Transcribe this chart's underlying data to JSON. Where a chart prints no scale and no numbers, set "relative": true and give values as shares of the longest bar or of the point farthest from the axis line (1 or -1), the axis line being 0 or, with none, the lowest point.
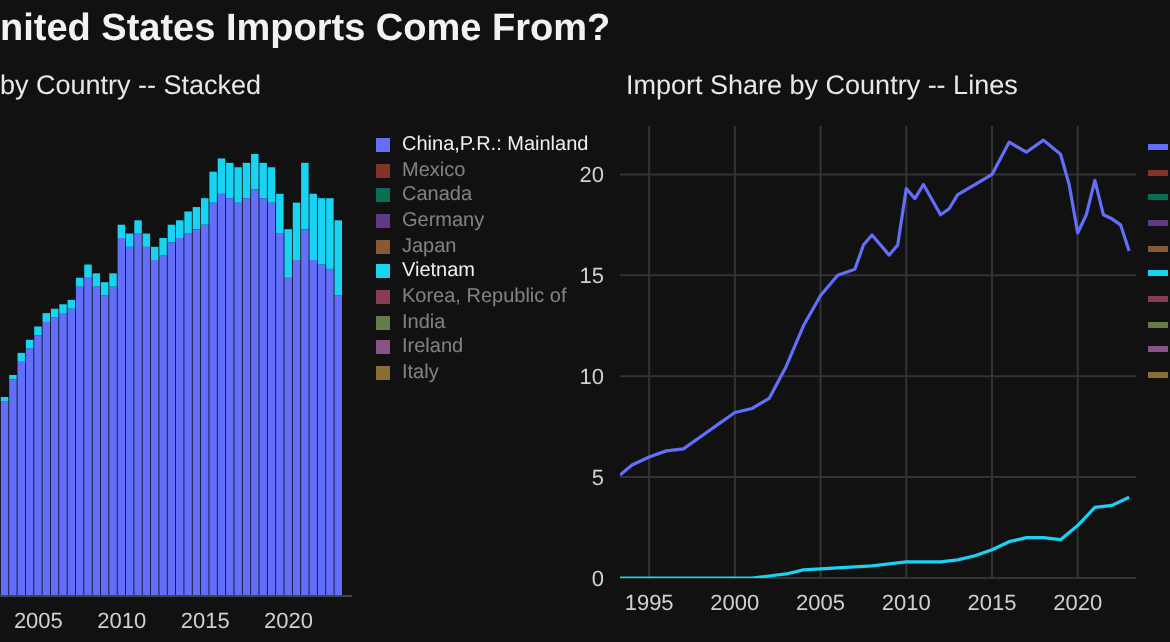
{
  "chart_data": [
    {
      "type": "bar",
      "title": "nited States Imports Come From?",
      "subtitle": "by Country -- Stacked",
      "stacked": true,
      "relative": true,
      "legend": "right",
      "tick_labels": "x",
      "xlim": [
        2002.7,
        2023.8
      ],
      "xticks": [
        2005,
        2010,
        2015,
        2020
      ],
      "x": [
        2003,
        2003.5,
        2004,
        2004.5,
        2005,
        2005.5,
        2006,
        2006.5,
        2007,
        2007.5,
        2008,
        2008.5,
        2009,
        2009.5,
        2010,
        2010.5,
        2011,
        2011.5,
        2012,
        2012.5,
        2013,
        2013.5,
        2014,
        2014.5,
        2015,
        2015.5,
        2016,
        2016.5,
        2017,
        2017.5,
        2018,
        2018.5,
        2019,
        2019.5,
        2020,
        2020.5,
        2021,
        2021.5,
        2022,
        2022.5,
        2023
      ],
      "series": [
        {
          "name": "China,P.R.: Mainland",
          "color": "#636efa",
          "values": [
            0.44,
            0.49,
            0.53,
            0.56,
            0.59,
            0.62,
            0.63,
            0.64,
            0.65,
            0.7,
            0.72,
            0.7,
            0.68,
            0.7,
            0.81,
            0.79,
            0.82,
            0.79,
            0.76,
            0.77,
            0.8,
            0.81,
            0.82,
            0.83,
            0.84,
            0.89,
            0.91,
            0.9,
            0.89,
            0.9,
            0.92,
            0.9,
            0.89,
            0.82,
            0.72,
            0.76,
            0.83,
            0.76,
            0.75,
            0.74,
            0.68
          ]
        },
        {
          "name": "Mexico",
          "color": "#ef553b",
          "values": [
            null,
            null,
            null,
            null,
            null,
            null,
            null,
            null,
            null,
            null,
            null,
            null,
            null,
            null,
            null,
            null,
            null,
            null,
            null,
            null,
            null,
            null,
            null,
            null,
            null,
            null,
            null,
            null,
            null,
            null,
            null,
            null,
            null,
            null,
            null,
            null,
            null,
            null,
            null,
            null,
            null
          ]
        },
        {
          "name": "Canada",
          "color": "#00cc96",
          "values": [
            null,
            null,
            null,
            null,
            null,
            null,
            null,
            null,
            null,
            null,
            null,
            null,
            null,
            null,
            null,
            null,
            null,
            null,
            null,
            null,
            null,
            null,
            null,
            null,
            null,
            null,
            null,
            null,
            null,
            null,
            null,
            null,
            null,
            null,
            null,
            null,
            null,
            null,
            null,
            null,
            null
          ]
        },
        {
          "name": "Germany",
          "color": "#ab63fa",
          "values": [
            null,
            null,
            null,
            null,
            null,
            null,
            null,
            null,
            null,
            null,
            null,
            null,
            null,
            null,
            null,
            null,
            null,
            null,
            null,
            null,
            null,
            null,
            null,
            null,
            null,
            null,
            null,
            null,
            null,
            null,
            null,
            null,
            null,
            null,
            null,
            null,
            null,
            null,
            null,
            null,
            null
          ]
        },
        {
          "name": "Japan",
          "color": "#ffa15a",
          "values": [
            null,
            null,
            null,
            null,
            null,
            null,
            null,
            null,
            null,
            null,
            null,
            null,
            null,
            null,
            null,
            null,
            null,
            null,
            null,
            null,
            null,
            null,
            null,
            null,
            null,
            null,
            null,
            null,
            null,
            null,
            null,
            null,
            null,
            null,
            null,
            null,
            null,
            null,
            null,
            null,
            null
          ]
        },
        {
          "name": "Vietnam",
          "color": "#19d3f3",
          "values": [
            0.01,
            0.01,
            0.02,
            0.02,
            0.02,
            0.02,
            0.02,
            0.02,
            0.02,
            0.02,
            0.03,
            0.03,
            0.03,
            0.03,
            0.03,
            0.03,
            0.03,
            0.03,
            0.03,
            0.04,
            0.04,
            0.04,
            0.05,
            0.05,
            0.06,
            0.07,
            0.08,
            0.08,
            0.08,
            0.08,
            0.08,
            0.08,
            0.08,
            0.09,
            0.11,
            0.13,
            0.15,
            0.15,
            0.15,
            0.16,
            0.17
          ]
        },
        {
          "name": "Korea, Republic of",
          "color": "#ff6692",
          "values": [
            null,
            null,
            null,
            null,
            null,
            null,
            null,
            null,
            null,
            null,
            null,
            null,
            null,
            null,
            null,
            null,
            null,
            null,
            null,
            null,
            null,
            null,
            null,
            null,
            null,
            null,
            null,
            null,
            null,
            null,
            null,
            null,
            null,
            null,
            null,
            null,
            null,
            null,
            null,
            null,
            null
          ]
        },
        {
          "name": "India",
          "color": "#b6e880",
          "values": [
            null,
            null,
            null,
            null,
            null,
            null,
            null,
            null,
            null,
            null,
            null,
            null,
            null,
            null,
            null,
            null,
            null,
            null,
            null,
            null,
            null,
            null,
            null,
            null,
            null,
            null,
            null,
            null,
            null,
            null,
            null,
            null,
            null,
            null,
            null,
            null,
            null,
            null,
            null,
            null,
            null
          ]
        },
        {
          "name": "Ireland",
          "color": "#ff97ff",
          "values": [
            null,
            null,
            null,
            null,
            null,
            null,
            null,
            null,
            null,
            null,
            null,
            null,
            null,
            null,
            null,
            null,
            null,
            null,
            null,
            null,
            null,
            null,
            null,
            null,
            null,
            null,
            null,
            null,
            null,
            null,
            null,
            null,
            null,
            null,
            null,
            null,
            null,
            null,
            null,
            null,
            null
          ]
        },
        {
          "name": "Italy",
          "color": "#fecb52",
          "values": [
            null,
            null,
            null,
            null,
            null,
            null,
            null,
            null,
            null,
            null,
            null,
            null,
            null,
            null,
            null,
            null,
            null,
            null,
            null,
            null,
            null,
            null,
            null,
            null,
            null,
            null,
            null,
            null,
            null,
            null,
            null,
            null,
            null,
            null,
            null,
            null,
            null,
            null,
            null,
            null,
            null
          ]
        }
      ]
    },
    {
      "type": "line",
      "subtitle": "Import Share by Country -- Lines",
      "legend": "right",
      "grid": true,
      "xlim": [
        1993.3,
        2023.4
      ],
      "xticks": [
        1995,
        2000,
        2005,
        2010,
        2015,
        2020
      ],
      "ylim": [
        0,
        22.4
      ],
      "yticks": [
        0,
        5,
        10,
        15,
        20
      ],
      "series": [
        {
          "color": "#636efa",
          "x": [
            1993.3,
            1994,
            1995,
            1996,
            1997,
            1998,
            1999,
            2000,
            2001,
            2002,
            2003,
            2004,
            2005,
            2006,
            2007,
            2007.5,
            2008,
            2009,
            2009.5,
            2010,
            2010.5,
            2011,
            2012,
            2012.5,
            2013,
            2014,
            2015,
            2016,
            2017,
            2018,
            2019,
            2019.5,
            2020,
            2020.5,
            2021,
            2021.5,
            2022,
            2022.5,
            2023
          ],
          "values": [
            5.1,
            5.6,
            6.0,
            6.3,
            6.4,
            7.0,
            7.6,
            8.2,
            8.4,
            8.9,
            10.5,
            12.5,
            14.0,
            15.0,
            15.3,
            16.5,
            17.0,
            16.0,
            16.5,
            19.3,
            18.8,
            19.5,
            18.0,
            18.3,
            19.0,
            19.5,
            20.0,
            21.6,
            21.1,
            21.7,
            21.0,
            19.5,
            17.1,
            18.0,
            19.7,
            18.0,
            17.8,
            17.5,
            16.2
          ]
        },
        {
          "color": "#ef553b"
        },
        {
          "color": "#00cc96"
        },
        {
          "color": "#ab63fa"
        },
        {
          "color": "#ffa15a"
        },
        {
          "color": "#19d3f3",
          "x": [
            1993.3,
            1996,
            1999,
            2001,
            2002,
            2003,
            2004,
            2006,
            2008,
            2010,
            2012,
            2013,
            2014,
            2015,
            2016,
            2017,
            2018,
            2019,
            2020,
            2021,
            2022,
            2023
          ],
          "values": [
            0.0,
            0.0,
            0.0,
            0.0,
            0.1,
            0.2,
            0.4,
            0.5,
            0.6,
            0.8,
            0.8,
            0.9,
            1.1,
            1.4,
            1.8,
            2.0,
            2.0,
            1.9,
            2.6,
            3.5,
            3.6,
            4.0
          ]
        },
        {
          "color": "#ff6692"
        },
        {
          "color": "#b6e880"
        },
        {
          "color": "#ff97ff"
        },
        {
          "color": "#fecb52"
        }
      ]
    }
  ]
}
